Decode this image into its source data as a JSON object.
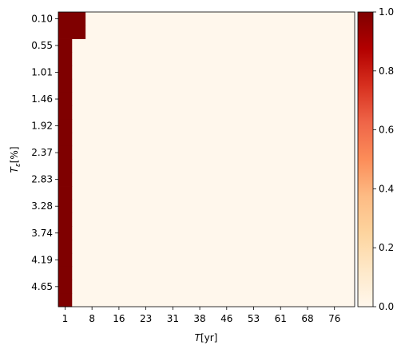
{
  "chart_data": {
    "type": "heatmap",
    "title": "",
    "xlabel_main": "T",
    "xlabel_unit": "[yr]",
    "ylabel_main": "T",
    "ylabel_sub": "ε",
    "ylabel_unit": "[%]",
    "x_ticks": [
      "1",
      "8",
      "16",
      "23",
      "31",
      "38",
      "46",
      "53",
      "61",
      "68",
      "76"
    ],
    "y_ticks": [
      "0.10",
      "0.55",
      "1.01",
      "1.46",
      "1.92",
      "2.37",
      "2.83",
      "3.28",
      "3.74",
      "4.19",
      "4.65"
    ],
    "n_cols": 22,
    "n_rows": 22,
    "high_region": {
      "value": 1.0,
      "rows_0_to_1_cols": [
        0,
        1
      ],
      "rows_2_to_21_cols": [
        0,
        0
      ]
    },
    "background_value": 0.0,
    "colorbar": {
      "colormap": "OrRd",
      "vmin": 0.0,
      "vmax": 1.0,
      "ticks": [
        "0.0",
        "0.2",
        "0.4",
        "0.6",
        "0.8",
        "1.0"
      ]
    }
  }
}
